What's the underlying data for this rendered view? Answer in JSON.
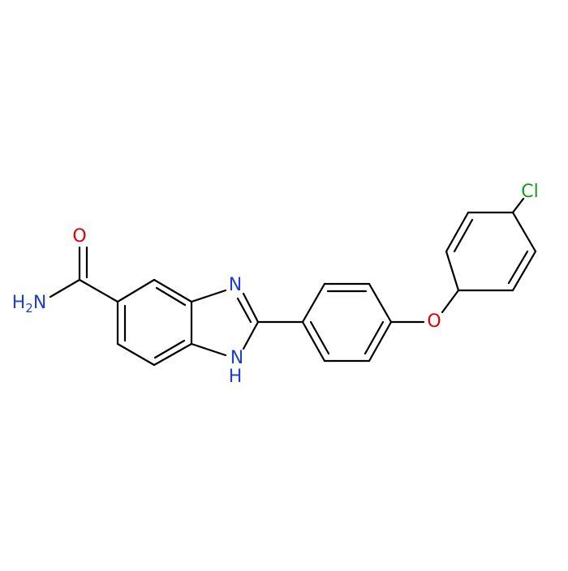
{
  "atoms": {
    "carbonyl_o": "O",
    "amide_n": {
      "h": "H",
      "count": "2",
      "n": "N"
    },
    "imine_n": "N",
    "nh": {
      "n": "N",
      "h": "H"
    },
    "ether_o": "O",
    "cl": "Cl"
  }
}
